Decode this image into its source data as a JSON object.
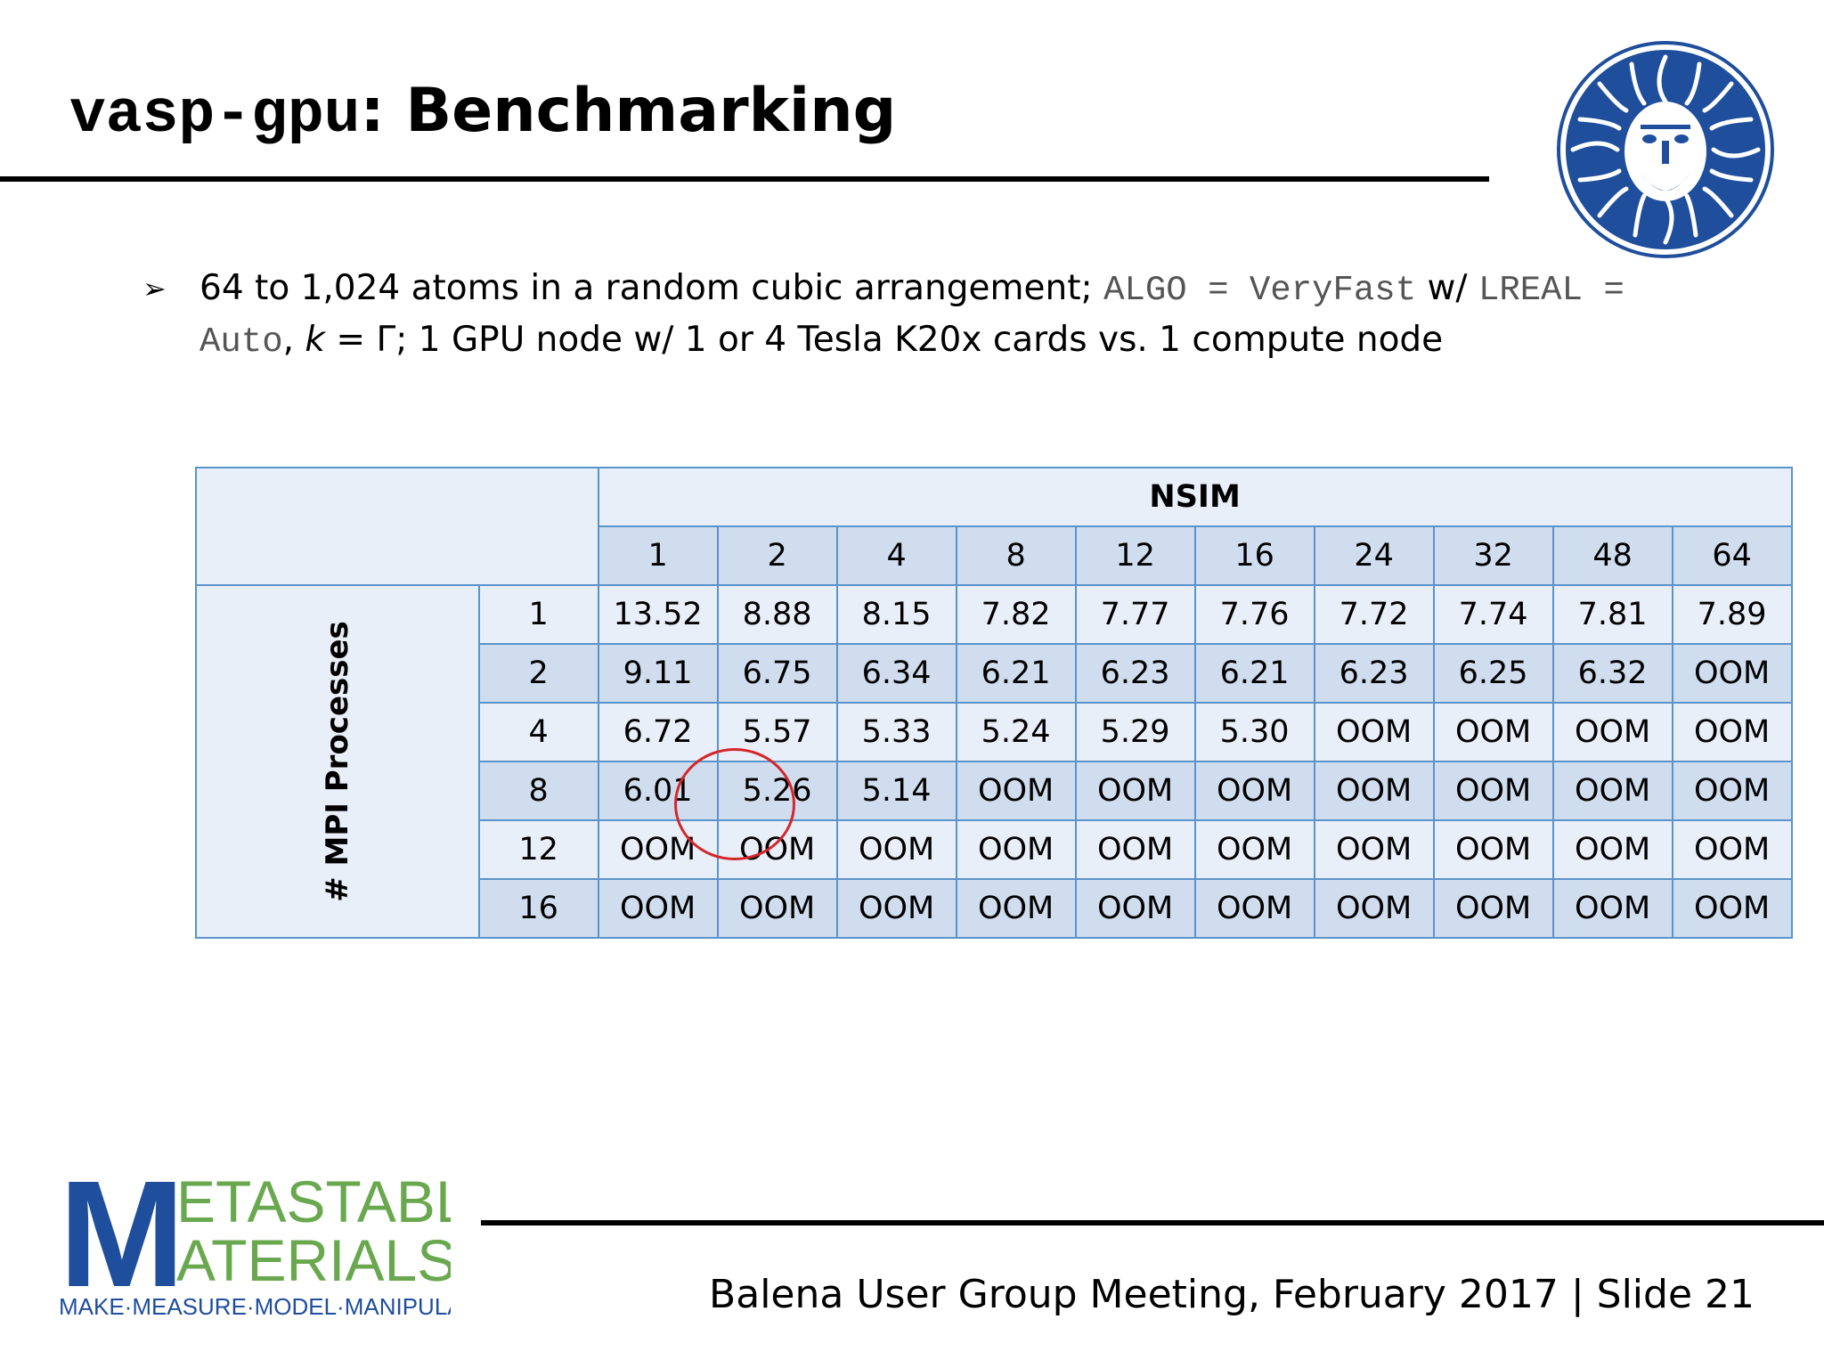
{
  "slide": {
    "title_code": "vasp-gpu",
    "title_rest": ": Benchmarking"
  },
  "bullet": {
    "t1": "64 to 1,024 atoms in a random cubic arrangement; ",
    "c1": "ALGO = VeryFast",
    "t2": " w/ ",
    "c2": "LREAL = Auto",
    "t3": ", ",
    "k": "k",
    "t4": " = Γ; 1 GPU node w/ 1 or 4 Tesla K20x cards vs. 1 compute node"
  },
  "table": {
    "col_group_label": "NSIM",
    "row_group_label": "# MPI Processes",
    "columns": [
      "1",
      "2",
      "4",
      "8",
      "12",
      "16",
      "24",
      "32",
      "48",
      "64"
    ],
    "rows": [
      {
        "label": "1",
        "values": [
          "13.52",
          "8.88",
          "8.15",
          "7.82",
          "7.77",
          "7.76",
          "7.72",
          "7.74",
          "7.81",
          "7.89"
        ]
      },
      {
        "label": "2",
        "values": [
          "9.11",
          "6.75",
          "6.34",
          "6.21",
          "6.23",
          "6.21",
          "6.23",
          "6.25",
          "6.32",
          "OOM"
        ]
      },
      {
        "label": "4",
        "values": [
          "6.72",
          "5.57",
          "5.33",
          "5.24",
          "5.29",
          "5.30",
          "OOM",
          "OOM",
          "OOM",
          "OOM"
        ]
      },
      {
        "label": "8",
        "values": [
          "6.01",
          "5.26",
          "5.14",
          "OOM",
          "OOM",
          "OOM",
          "OOM",
          "OOM",
          "OOM",
          "OOM"
        ]
      },
      {
        "label": "12",
        "values": [
          "OOM",
          "OOM",
          "OOM",
          "OOM",
          "OOM",
          "OOM",
          "OOM",
          "OOM",
          "OOM",
          "OOM"
        ]
      },
      {
        "label": "16",
        "values": [
          "OOM",
          "OOM",
          "OOM",
          "OOM",
          "OOM",
          "OOM",
          "OOM",
          "OOM",
          "OOM",
          "OOM"
        ]
      }
    ],
    "highlight": {
      "row": 3,
      "col": 2
    }
  },
  "footer": {
    "text": "Balena User Group Meeting, February 2017 | Slide 21",
    "logo_line1": "ETASTABLE",
    "logo_line2": "ATERIALS",
    "logo_tagline": "MAKE·MEASURE·MODEL·MANIPULATE"
  },
  "colors": {
    "table_border": "#5b93cb",
    "cell_light": "#e9eff8",
    "cell_dark": "#d0ddee",
    "highlight_circle": "#d4262b",
    "logo_blue": "#1f4e9c",
    "logo_green": "#6aa84f"
  },
  "icons": {
    "bullet": "arrowhead-bullet-icon",
    "seal": "university-seal-logo"
  }
}
